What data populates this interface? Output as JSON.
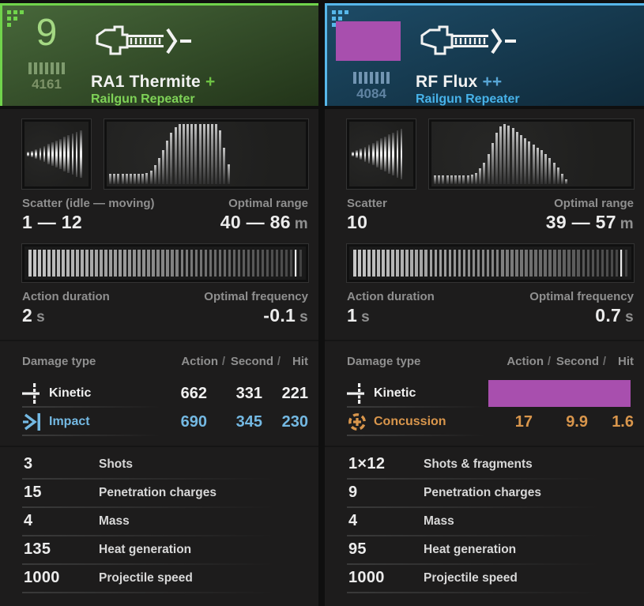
{
  "charts": {
    "left_scatter": {
      "type": "bar-centered",
      "slots": 15,
      "values": [
        0.07,
        0.11,
        0.16,
        0.21,
        0.27,
        0.33,
        0.39,
        0.45,
        0.51,
        0.57,
        0.63,
        0.69,
        0.75,
        0.8
      ]
    },
    "left_range": {
      "type": "bar",
      "slots": 48,
      "values": [
        0.17,
        0.17,
        0.17,
        0.17,
        0.17,
        0.17,
        0.17,
        0.17,
        0.17,
        0.18,
        0.23,
        0.31,
        0.43,
        0.57,
        0.72,
        0.86,
        0.95,
        1,
        1,
        1,
        1,
        1,
        1,
        1,
        1,
        1,
        1,
        0.9,
        0.6,
        0.33
      ]
    },
    "left_duration": {
      "type": "strip",
      "count": 58,
      "marker": 0.962
    },
    "right_scatter": {
      "type": "bar-centered",
      "slots": 15,
      "values": [
        0.08,
        0.13,
        0.19,
        0.25,
        0.31,
        0.38,
        0.45,
        0.52,
        0.59,
        0.66,
        0.72,
        0.78,
        0.83
      ]
    },
    "right_range": {
      "type": "bar",
      "slots": 48,
      "values": [
        0.15,
        0.15,
        0.15,
        0.15,
        0.15,
        0.15,
        0.15,
        0.15,
        0.15,
        0.16,
        0.19,
        0.26,
        0.36,
        0.5,
        0.68,
        0.85,
        0.96,
        1,
        0.98,
        0.93,
        0.87,
        0.81,
        0.76,
        0.71,
        0.66,
        0.61,
        0.56,
        0.5,
        0.44,
        0.36,
        0.27,
        0.17,
        0.08
      ]
    },
    "right_duration": {
      "type": "strip",
      "count": 58,
      "marker": 0.962
    }
  },
  "panels": {
    "left": {
      "colors": {
        "accent": "#71d44c",
        "header_top": "#47673a",
        "header_bottom": "#223419",
        "power": "#a4d883",
        "durability": "#7d9368",
        "bars": "#7f9b6e",
        "marks": "#6ec243",
        "category": "#7ed257",
        "impact": "#74b9e3"
      },
      "power_level": "9",
      "durability": "4161",
      "name": "RA1 Thermite",
      "marks": "+",
      "category": "Railgun Repeater",
      "scatter_label": "Scatter (idle — moving)",
      "scatter_value": "1 — 12",
      "range_label": "Optimal range",
      "range_value": "40 — 86",
      "range_unit": "m",
      "duration_label": "Action duration",
      "duration_value": "2",
      "duration_unit": "s",
      "frequency_label": "Optimal frequency",
      "frequency_value": "-0.1",
      "frequency_unit": "s",
      "damage_header": "Damage type",
      "damage_cols": {
        "c1": "Action",
        "sep": "/",
        "c2": "Second",
        "c3": "Hit"
      },
      "damage_rows": [
        {
          "icon": "kinetic-icon",
          "type": "Kinetic",
          "color": "#f0f0f0",
          "action": "662",
          "second": "331",
          "hit": "221"
        },
        {
          "icon": "impact-icon",
          "type": "Impact",
          "color": "#74b9e3",
          "action": "690",
          "second": "345",
          "hit": "230"
        }
      ],
      "stats": [
        {
          "value": "3",
          "label": "Shots"
        },
        {
          "value": "15",
          "label": "Penetration charges"
        },
        {
          "value": "4",
          "label": "Mass"
        },
        {
          "value": "135",
          "label": "Heat generation"
        },
        {
          "value": "1000",
          "label": "Projectile speed"
        }
      ]
    },
    "right": {
      "colors": {
        "accent": "#57b7ea",
        "header_top": "#1d4b66",
        "header_bottom": "#0f2939",
        "power": "#9fc7e0",
        "durability": "#5f83a2",
        "bars": "#7295b2",
        "marks": "#57a5d5",
        "category": "#47b2e9",
        "concussion": "#d9964c",
        "redact": "#a84fae"
      },
      "power_redacted": true,
      "durability": "4084",
      "name": "RF Flux",
      "marks": "++",
      "category": "Railgun Repeater",
      "scatter_label": "Scatter",
      "scatter_value": "10",
      "range_label": "Optimal range",
      "range_value": "39 — 57",
      "range_unit": "m",
      "duration_label": "Action duration",
      "duration_value": "1",
      "duration_unit": "s",
      "frequency_label": "Optimal frequency",
      "frequency_value": "0.7",
      "frequency_unit": "s",
      "damage_header": "Damage type",
      "damage_cols": {
        "c1": "Action",
        "sep": "/",
        "c2": "Second",
        "c3": "Hit"
      },
      "damage_rows": [
        {
          "icon": "kinetic-icon",
          "type": "Kinetic",
          "color": "#f0f0f0",
          "redacted": true
        },
        {
          "icon": "concussion-icon",
          "type": "Concussion",
          "color": "#d9964c",
          "action": "17",
          "second": "9.9",
          "hit": "1.6"
        }
      ],
      "stats": [
        {
          "value": "1×12",
          "label": "Shots & fragments"
        },
        {
          "value": "9",
          "label": "Penetration charges"
        },
        {
          "value": "4",
          "label": "Mass"
        },
        {
          "value": "95",
          "label": "Heat generation"
        },
        {
          "value": "1000",
          "label": "Projectile speed"
        }
      ]
    }
  }
}
